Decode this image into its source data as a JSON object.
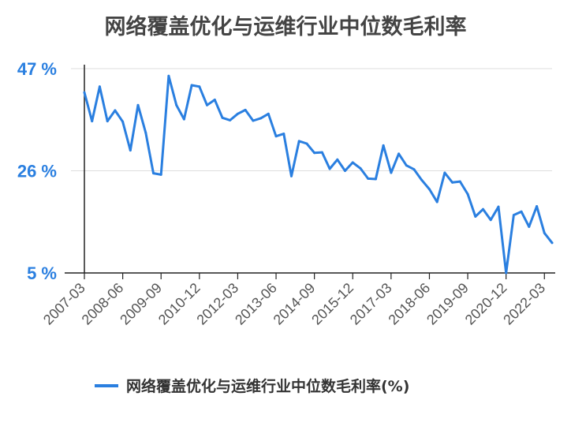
{
  "chart_data": {
    "type": "line",
    "title": "网络覆盖优化与运维行业中位数毛利率",
    "xlabel": "",
    "ylabel": "",
    "ylim": [
      5,
      47
    ],
    "yticks": [
      {
        "value": 47,
        "label": "47 %"
      },
      {
        "value": 26,
        "label": "26 %"
      },
      {
        "value": 5,
        "label": "5 %"
      }
    ],
    "xtick_labels": [
      "2007-03",
      "2008-06",
      "2009-09",
      "2010-12",
      "2012-03",
      "2013-06",
      "2014-09",
      "2015-12",
      "2017-03",
      "2018-06",
      "2019-09",
      "2020-12",
      "2022-03"
    ],
    "grid": true,
    "legend_position": "bottom",
    "color": "#2a7fe0",
    "series": [
      {
        "name": "网络覆盖优化与运维行业中位数毛利率(%)",
        "values": [
          42.1,
          36.2,
          43.3,
          36.2,
          38.4,
          36.1,
          30.2,
          39.5,
          33.8,
          25.5,
          25.2,
          45.5,
          39.5,
          36.6,
          43.6,
          43.3,
          39.5,
          40.6,
          36.9,
          36.4,
          37.7,
          38.5,
          36.3,
          36.8,
          37.7,
          33.1,
          33.6,
          24.9,
          32.1,
          31.6,
          29.7,
          29.8,
          26.4,
          28.3,
          26.0,
          27.7,
          26.5,
          24.4,
          24.3,
          31.2,
          25.6,
          29.5,
          27.1,
          26.3,
          24.1,
          22.2,
          19.6,
          25.6,
          23.6,
          23.8,
          21.2,
          16.6,
          18.1,
          15.9,
          18.6,
          5.0,
          16.9,
          17.6,
          14.5,
          18.7,
          13.2,
          11.2
        ]
      }
    ]
  }
}
